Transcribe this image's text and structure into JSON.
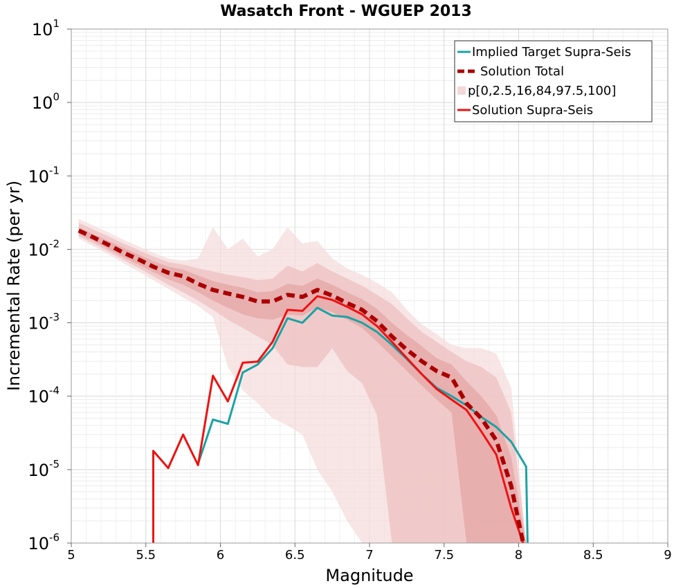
{
  "chart_data": {
    "type": "line",
    "title": "Wasatch Front - WGUEP 2013",
    "xlabel": "Magnitude",
    "ylabel": "Incremental Rate (per yr)",
    "xlim": [
      5,
      9
    ],
    "ylim": [
      1e-06,
      10
    ],
    "y_scale": "log",
    "x_ticks": [
      "5",
      "5.5",
      "6",
      "6.5",
      "7",
      "7.5",
      "8",
      "8.5",
      "9"
    ],
    "y_ticks": [
      {
        "base": "10",
        "exp": "-6"
      },
      {
        "base": "10",
        "exp": "-5"
      },
      {
        "base": "10",
        "exp": "-4"
      },
      {
        "base": "10",
        "exp": "-3"
      },
      {
        "base": "10",
        "exp": "-2"
      },
      {
        "base": "10",
        "exp": "-1"
      },
      {
        "base": "10",
        "exp": "0"
      },
      {
        "base": "10",
        "exp": "1"
      }
    ],
    "grid": true,
    "legend_position": "top-right",
    "legend": [
      {
        "label": "Implied Target Supra-Seis",
        "color": "#1aa3a3",
        "style": "solid"
      },
      {
        "label": "Solution Total",
        "color": "#aa0000",
        "style": "dashed"
      },
      {
        "label": "p[0,2.5,16,84,97.5,100]",
        "color": "#f4d8d8",
        "style": "band"
      },
      {
        "label": "Solution Supra-Seis",
        "color": "#ee1111",
        "style": "solid"
      }
    ],
    "colors": {
      "target": "#1aa3a3",
      "total": "#aa0000",
      "supra": "#ee1111",
      "band_outer": "#f6dcdc",
      "band_mid": "#eec0c0",
      "band_inner": "#e5a5a5"
    },
    "series": [
      {
        "name": "Implied Target Supra-Seis",
        "x": [
          5.85,
          5.95,
          6.05,
          6.15,
          6.25,
          6.35,
          6.45,
          6.55,
          6.65,
          6.75,
          6.85,
          6.95,
          7.05,
          7.15,
          7.25,
          7.35,
          7.45,
          7.55,
          7.65,
          7.75,
          7.85,
          7.95,
          8.05,
          8.06
        ],
        "y": [
          1.2e-05,
          4.8e-05,
          4.2e-05,
          0.00021,
          0.00027,
          0.00045,
          0.00115,
          0.001,
          0.0016,
          0.00125,
          0.0012,
          0.001,
          0.00075,
          0.0005,
          0.00032,
          0.0002,
          0.00013,
          0.0001,
          7.5e-05,
          5.2e-05,
          3.8e-05,
          2.4e-05,
          1.1e-05,
          1e-06
        ]
      },
      {
        "name": "Solution Total",
        "x": [
          5.05,
          5.15,
          5.25,
          5.35,
          5.45,
          5.55,
          5.65,
          5.75,
          5.85,
          5.95,
          6.05,
          6.15,
          6.25,
          6.35,
          6.45,
          6.55,
          6.65,
          6.75,
          6.85,
          6.95,
          7.05,
          7.15,
          7.25,
          7.35,
          7.45,
          7.55,
          7.65,
          7.75,
          7.85,
          7.95,
          8.03
        ],
        "y": [
          0.018,
          0.0145,
          0.0115,
          0.009,
          0.0073,
          0.0058,
          0.0048,
          0.0043,
          0.0034,
          0.0028,
          0.0025,
          0.00225,
          0.00195,
          0.00195,
          0.0024,
          0.00225,
          0.0028,
          0.00235,
          0.00185,
          0.0015,
          0.00105,
          0.00065,
          0.00043,
          0.0003,
          0.00022,
          0.00018,
          8e-05,
          5e-05,
          2.5e-05,
          6e-06,
          1e-06
        ]
      },
      {
        "name": "Solution Supra-Seis",
        "x": [
          5.55,
          5.55,
          5.65,
          5.75,
          5.85,
          5.95,
          6.05,
          6.15,
          6.25,
          6.35,
          6.45,
          6.55,
          6.65,
          6.75,
          6.85,
          6.95,
          7.05,
          7.15,
          7.25,
          7.35,
          7.45,
          7.55,
          7.65,
          7.75,
          7.85,
          7.95,
          8.03
        ],
        "y": [
          1e-06,
          1.8e-05,
          1.05e-05,
          3e-05,
          1.15e-05,
          0.00019,
          8.5e-05,
          0.000285,
          0.000295,
          0.00055,
          0.0015,
          0.00145,
          0.0023,
          0.00205,
          0.00165,
          0.0013,
          0.0009,
          0.00055,
          0.00033,
          0.0002,
          0.000125,
          9e-05,
          6.5e-05,
          3.3e-05,
          1.6e-05,
          3e-06,
          1e-06
        ]
      }
    ],
    "bands": [
      {
        "name": "p0-p100",
        "x": [
          5.05,
          5.15,
          5.25,
          5.35,
          5.45,
          5.55,
          5.65,
          5.75,
          5.85,
          5.95,
          6.05,
          6.15,
          6.25,
          6.35,
          6.45,
          6.55,
          6.65,
          6.75,
          6.85,
          6.95,
          7.05,
          7.15,
          7.25,
          7.35,
          7.45,
          7.55,
          7.65,
          7.75,
          7.85,
          7.95,
          8.05
        ],
        "lower": [
          0.014,
          0.011,
          0.0085,
          0.0065,
          0.005,
          0.0038,
          0.0029,
          0.0022,
          0.0017,
          0.0012,
          0.00025,
          0.00012,
          8e-05,
          5e-05,
          4e-05,
          3e-05,
          1e-05,
          5e-06,
          2e-06,
          1e-06,
          1e-06,
          1e-06,
          1e-06,
          1e-06,
          1e-06,
          1e-06,
          1e-06,
          1e-06,
          1e-06,
          1e-06,
          1e-06
        ],
        "upper": [
          0.026,
          0.021,
          0.017,
          0.0135,
          0.011,
          0.009,
          0.0075,
          0.007,
          0.0075,
          0.02,
          0.01,
          0.014,
          0.008,
          0.01,
          0.02,
          0.012,
          0.013,
          0.0075,
          0.0055,
          0.0045,
          0.0035,
          0.0026,
          0.0015,
          0.00095,
          0.0007,
          0.0005,
          0.00045,
          0.00045,
          0.00038,
          0.00013,
          1e-06
        ]
      },
      {
        "name": "p2.5-p97.5",
        "x": [
          5.05,
          5.15,
          5.25,
          5.35,
          5.45,
          5.55,
          5.65,
          5.75,
          5.85,
          5.95,
          6.05,
          6.15,
          6.25,
          6.35,
          6.45,
          6.55,
          6.65,
          6.75,
          6.85,
          6.95,
          7.05,
          7.15,
          7.25,
          7.35,
          7.45,
          7.55,
          7.65,
          7.75,
          7.85,
          7.95,
          8.05
        ],
        "lower": [
          0.015,
          0.012,
          0.0093,
          0.0072,
          0.0056,
          0.0043,
          0.0033,
          0.0026,
          0.002,
          0.0015,
          0.0011,
          0.00085,
          0.00065,
          0.0005,
          0.00027,
          0.00025,
          0.00025,
          0.00045,
          0.00022,
          0.00015,
          5.5e-05,
          1e-06,
          1e-06,
          1e-06,
          1e-06,
          1e-06,
          1e-06,
          1e-06,
          1e-06,
          1e-06,
          1e-06
        ],
        "upper": [
          0.023,
          0.0185,
          0.015,
          0.012,
          0.0098,
          0.008,
          0.0067,
          0.0062,
          0.0055,
          0.005,
          0.0045,
          0.0042,
          0.0038,
          0.004,
          0.006,
          0.005,
          0.0065,
          0.005,
          0.004,
          0.0032,
          0.0024,
          0.0018,
          0.00115,
          0.00075,
          0.00055,
          0.0004,
          0.0003,
          0.00025,
          0.00018,
          6e-05,
          1e-06
        ]
      },
      {
        "name": "p16-p84",
        "x": [
          5.05,
          5.15,
          5.25,
          5.35,
          5.45,
          5.55,
          5.65,
          5.75,
          5.85,
          5.95,
          6.05,
          6.15,
          6.25,
          6.35,
          6.45,
          6.55,
          6.65,
          6.75,
          6.85,
          6.95,
          7.05,
          7.15,
          7.25,
          7.35,
          7.45,
          7.55,
          7.65,
          7.75,
          7.85,
          7.95,
          8.05
        ],
        "lower": [
          0.016,
          0.013,
          0.01,
          0.0078,
          0.0062,
          0.0049,
          0.0039,
          0.0033,
          0.0026,
          0.002,
          0.0016,
          0.0013,
          0.00115,
          0.0011,
          0.0013,
          0.00125,
          0.0016,
          0.0014,
          0.0011,
          0.00085,
          0.00055,
          0.00035,
          0.00022,
          0.00014,
          9e-05,
          6e-05,
          1e-06,
          1e-06,
          1e-06,
          1e-06,
          1e-06
        ],
        "upper": [
          0.02,
          0.016,
          0.013,
          0.0105,
          0.0085,
          0.0069,
          0.0058,
          0.0053,
          0.0044,
          0.0037,
          0.0033,
          0.003,
          0.0026,
          0.0027,
          0.0034,
          0.0032,
          0.004,
          0.0033,
          0.0026,
          0.0021,
          0.00155,
          0.001,
          0.00068,
          0.00048,
          0.00033,
          0.00027,
          0.00016,
          0.0001,
          5.5e-05,
          1.5e-05,
          1e-06
        ]
      }
    ]
  }
}
